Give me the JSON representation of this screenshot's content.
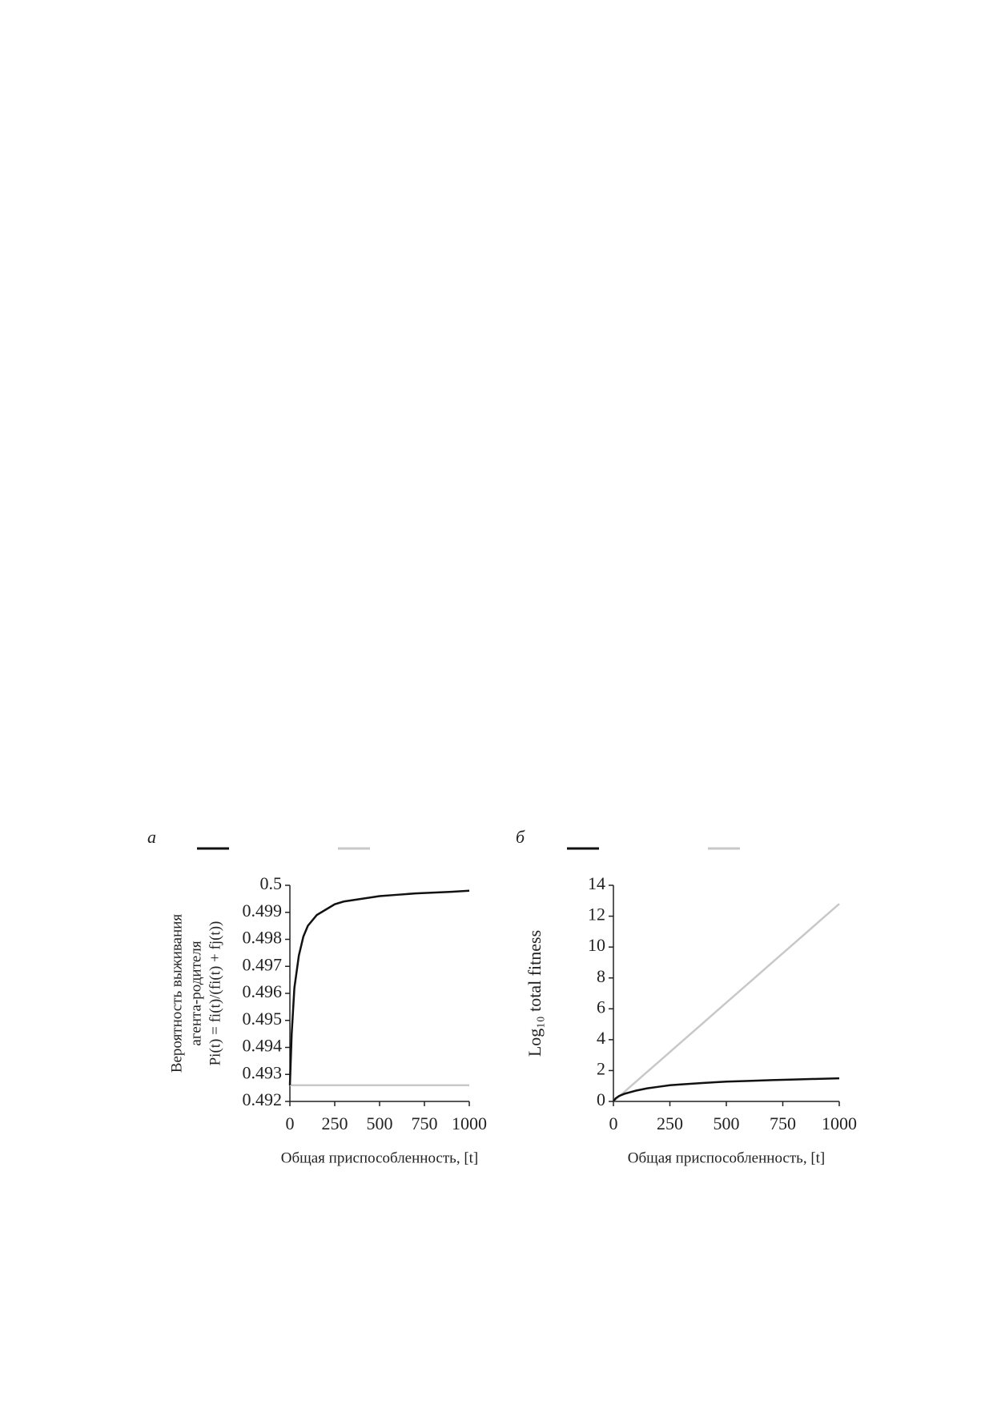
{
  "chart_data": [
    {
      "type": "line",
      "panel_label": "а",
      "y_label": [
        "Вероятность выживания",
        "агента-родителя",
        "Pi(t) = fi(t)/(fi(t) + fj(t))"
      ],
      "x_label": "Общая приспособленность, [t]",
      "x": [
        0,
        10,
        25,
        50,
        75,
        100,
        150,
        200,
        250,
        300,
        400,
        500,
        600,
        700,
        800,
        900,
        1000
      ],
      "series": [
        {
          "color": "#111111",
          "values": [
            0.4926,
            0.4945,
            0.4962,
            0.4974,
            0.4981,
            0.4985,
            0.4989,
            0.4991,
            0.4993,
            0.4994,
            0.4995,
            0.4996,
            0.49965,
            0.4997,
            0.49973,
            0.49976,
            0.4998
          ]
        },
        {
          "color": "#c8c8c8",
          "values": [
            0.4926,
            0.4926,
            0.4926,
            0.4926,
            0.4926,
            0.4926,
            0.4926,
            0.4926,
            0.4926,
            0.4926,
            0.4926,
            0.4926,
            0.4926,
            0.4926,
            0.4926,
            0.4926,
            0.4926
          ]
        }
      ],
      "xlim": [
        0,
        1000
      ],
      "xticks": [
        0,
        250,
        500,
        750,
        1000
      ],
      "ylim": [
        0.492,
        0.5
      ],
      "yticks": [
        0.492,
        0.493,
        0.494,
        0.495,
        0.496,
        0.497,
        0.498,
        0.499,
        0.5
      ]
    },
    {
      "type": "line",
      "panel_label": "б",
      "y_label": [
        "Log₁₀ total fitness"
      ],
      "x_label": "Общая приспособленность, [t]",
      "x": [
        0,
        10,
        25,
        50,
        75,
        100,
        150,
        200,
        250,
        300,
        400,
        500,
        600,
        700,
        800,
        900,
        1000
      ],
      "series": [
        {
          "color": "#111111",
          "values": [
            0,
            0.2,
            0.35,
            0.5,
            0.6,
            0.7,
            0.85,
            0.95,
            1.05,
            1.1,
            1.2,
            1.28,
            1.33,
            1.38,
            1.42,
            1.46,
            1.5
          ]
        },
        {
          "color": "#c8c8c8",
          "values": [
            0,
            0.128,
            0.32,
            0.64,
            0.96,
            1.28,
            1.92,
            2.56,
            3.2,
            3.84,
            5.12,
            6.4,
            7.68,
            8.96,
            10.24,
            11.52,
            12.8
          ]
        }
      ],
      "xlim": [
        0,
        1000
      ],
      "xticks": [
        0,
        250,
        500,
        750,
        1000
      ],
      "ylim": [
        0,
        14
      ],
      "yticks": [
        0,
        2,
        4,
        6,
        8,
        10,
        12,
        14
      ]
    }
  ]
}
